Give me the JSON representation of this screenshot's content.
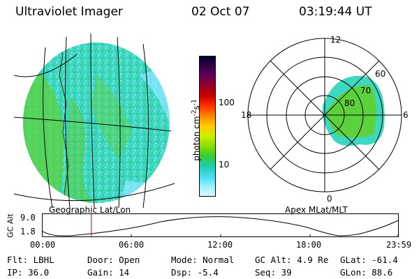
{
  "header": {
    "instrument": "Ultraviolet Imager",
    "date": "02 Oct 07",
    "time": "03:19:44 UT"
  },
  "geo_map": {
    "caption": "Geographic Lat/Lon"
  },
  "polar_plot": {
    "caption": "Apex MLat/MLT",
    "mlt_labels": [
      "12",
      "18",
      "6",
      "0"
    ],
    "lat_labels": [
      "60",
      "70",
      "80"
    ]
  },
  "colorbar": {
    "unit_label": "photon cm",
    "unit_sup1": "-2",
    "unit_s": "s",
    "unit_sup2": "-1",
    "ticks": [
      "100",
      "10"
    ],
    "colors": [
      "#000033",
      "#330044",
      "#660055",
      "#990022",
      "#cc0000",
      "#ff3300",
      "#ff8800",
      "#ffcc00",
      "#ccee00",
      "#88dd00",
      "#33cc33",
      "#22ccaa",
      "#44ddee",
      "#99eeff",
      "#ddf7ff"
    ]
  },
  "altitude_panel": {
    "axis_label": "GC Alt",
    "y_ticks": [
      "9.0",
      "1.8"
    ],
    "time_ticks": [
      "00:00",
      "06:00",
      "12:00",
      "18:00",
      "23:59"
    ],
    "current_time_fraction": 0.139
  },
  "status": {
    "filter": "Flt: LBHL",
    "ip": "IP: 36.0",
    "door": "Door: Open",
    "gain": "Gain: 14",
    "mode": "Mode: Normal",
    "dsp": "Dsp:   -5.4",
    "gc_alt": "GC Alt: 4.9 Re",
    "seq": "Seq: 39",
    "glat": "GLat: -61.4",
    "glon": "GLon:  88.6"
  }
}
